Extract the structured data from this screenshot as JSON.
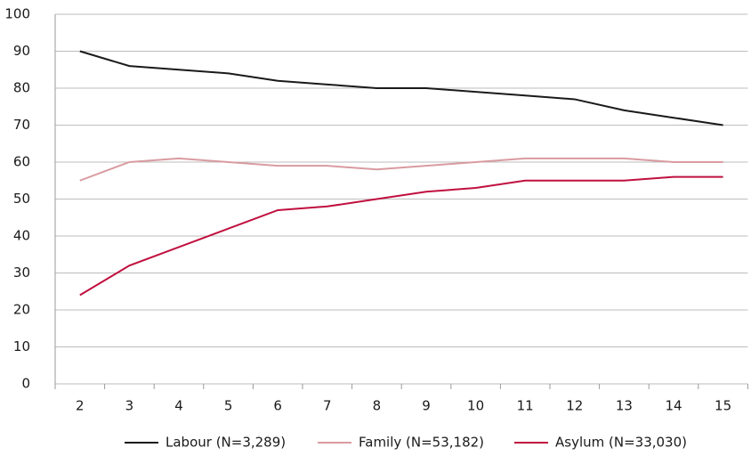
{
  "chart_data": {
    "type": "line",
    "categories": [
      "2",
      "3",
      "4",
      "5",
      "6",
      "7",
      "8",
      "9",
      "10",
      "11",
      "12",
      "13",
      "14",
      "15"
    ],
    "series": [
      {
        "name": "Labour (N=3,289)",
        "color": "#1a1a1a",
        "values": [
          90,
          86,
          85,
          84,
          82,
          81,
          80,
          80,
          79,
          78,
          77,
          74,
          72,
          70
        ]
      },
      {
        "name": "Family (N=53,182)",
        "color": "#d99ba0",
        "values": [
          55,
          60,
          61,
          60,
          59,
          59,
          58,
          59,
          60,
          61,
          61,
          61,
          60,
          60
        ]
      },
      {
        "name": "Asylum (N=33,030)",
        "color": "#c0103f",
        "values": [
          24,
          32,
          37,
          42,
          47,
          48,
          50,
          52,
          53,
          55,
          55,
          55,
          56,
          56
        ]
      }
    ],
    "ylim": [
      0,
      100
    ],
    "yticks": [
      0,
      10,
      20,
      30,
      40,
      50,
      60,
      70,
      80,
      90,
      100
    ],
    "grid": true,
    "legend": "bottom"
  }
}
